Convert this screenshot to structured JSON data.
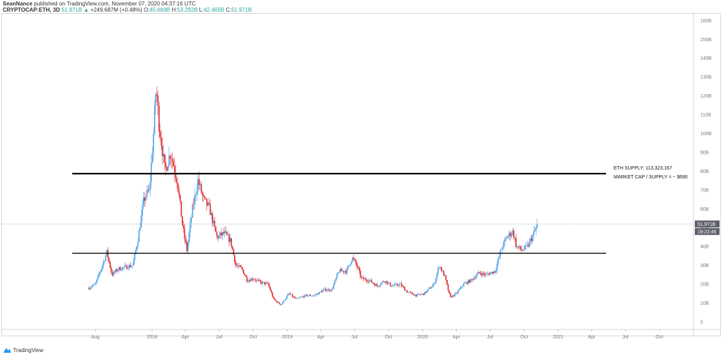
{
  "header": {
    "publisher": "SeanNance",
    "published_text": "published on TradingView.com, November 07, 2020 04:37:16 UTC",
    "symbol": "CRYPTOCAP:ETH, 3D",
    "last": "51.971B",
    "change": "+249.687M (+0.48%)",
    "open_label": "O:",
    "open": "45.689B",
    "high_label": "H:",
    "high": "53.292B",
    "low_label": "L:",
    "low": "42.465B",
    "close_label": "C:",
    "close": "51.971B"
  },
  "price_label": "51.971B",
  "countdown_label": "19:22:46",
  "brand": "TradingView",
  "colors": {
    "up": "#4a9fe8",
    "down": "#e02424",
    "axis_label_bg": "#5d606b"
  },
  "chart_data": {
    "type": "candlestick",
    "y_unit": "B",
    "ylim": [
      0,
      160
    ],
    "y_ticks": [
      "0",
      "10B",
      "20B",
      "30B",
      "40B",
      "50B",
      "60B",
      "70B",
      "80B",
      "90B",
      "100B",
      "110B",
      "120B",
      "130B",
      "140B",
      "150B",
      "160B"
    ],
    "x_ticks": [
      "Aug",
      "2018",
      "Apr",
      "Jul",
      "Oct",
      "2019",
      "Apr",
      "Jul",
      "Oct",
      "2020",
      "Apr",
      "Jul",
      "Oct",
      "2021",
      "Apr",
      "Jul",
      "Oct"
    ],
    "x_tick_dates": [
      "2017-08-01",
      "2018-01-01",
      "2018-04-01",
      "2018-07-01",
      "2018-10-01",
      "2019-01-01",
      "2019-04-01",
      "2019-07-01",
      "2019-10-01",
      "2020-01-01",
      "2020-04-01",
      "2020-07-01",
      "2020-10-01",
      "2021-01-01",
      "2021-04-01",
      "2021-07-01",
      "2021-10-01"
    ],
    "close_path": [
      [
        "2017-07-15",
        18
      ],
      [
        "2017-08-01",
        20
      ],
      [
        "2017-08-20",
        30
      ],
      [
        "2017-09-01",
        37
      ],
      [
        "2017-09-15",
        25
      ],
      [
        "2017-10-01",
        28
      ],
      [
        "2017-10-20",
        29
      ],
      [
        "2017-11-10",
        30
      ],
      [
        "2017-11-25",
        45
      ],
      [
        "2017-12-10",
        65
      ],
      [
        "2017-12-25",
        70
      ],
      [
        "2018-01-05",
        100
      ],
      [
        "2018-01-12",
        125
      ],
      [
        "2018-01-20",
        105
      ],
      [
        "2018-02-05",
        80
      ],
      [
        "2018-02-20",
        90
      ],
      [
        "2018-03-10",
        75
      ],
      [
        "2018-03-25",
        50
      ],
      [
        "2018-04-05",
        38
      ],
      [
        "2018-04-20",
        60
      ],
      [
        "2018-05-05",
        75
      ],
      [
        "2018-05-20",
        65
      ],
      [
        "2018-06-05",
        60
      ],
      [
        "2018-06-25",
        45
      ],
      [
        "2018-07-15",
        47
      ],
      [
        "2018-08-01",
        43
      ],
      [
        "2018-08-15",
        30
      ],
      [
        "2018-09-01",
        28
      ],
      [
        "2018-09-15",
        22
      ],
      [
        "2018-10-01",
        23
      ],
      [
        "2018-10-20",
        21
      ],
      [
        "2018-11-10",
        20
      ],
      [
        "2018-11-25",
        12
      ],
      [
        "2018-12-15",
        9
      ],
      [
        "2019-01-05",
        15
      ],
      [
        "2019-01-25",
        12
      ],
      [
        "2019-02-20",
        14
      ],
      [
        "2019-03-15",
        14
      ],
      [
        "2019-04-10",
        17
      ],
      [
        "2019-05-01",
        17
      ],
      [
        "2019-05-20",
        27
      ],
      [
        "2019-06-10",
        27
      ],
      [
        "2019-06-25",
        34
      ],
      [
        "2019-07-05",
        31
      ],
      [
        "2019-07-20",
        23
      ],
      [
        "2019-08-10",
        22
      ],
      [
        "2019-09-01",
        19
      ],
      [
        "2019-09-20",
        22
      ],
      [
        "2019-10-10",
        19
      ],
      [
        "2019-11-01",
        20
      ],
      [
        "2019-11-20",
        16
      ],
      [
        "2019-12-15",
        14
      ],
      [
        "2020-01-05",
        15
      ],
      [
        "2020-02-01",
        20
      ],
      [
        "2020-02-15",
        30
      ],
      [
        "2020-03-01",
        24
      ],
      [
        "2020-03-15",
        13
      ],
      [
        "2020-04-01",
        15
      ],
      [
        "2020-04-20",
        20
      ],
      [
        "2020-05-10",
        22
      ],
      [
        "2020-06-01",
        26
      ],
      [
        "2020-06-20",
        25
      ],
      [
        "2020-07-15",
        27
      ],
      [
        "2020-07-30",
        38
      ],
      [
        "2020-08-15",
        45
      ],
      [
        "2020-09-01",
        48
      ],
      [
        "2020-09-10",
        40
      ],
      [
        "2020-09-25",
        38
      ],
      [
        "2020-10-10",
        40
      ],
      [
        "2020-10-25",
        46
      ],
      [
        "2020-11-07",
        51.97
      ]
    ],
    "last_value": 51.971,
    "horizontal_lines": [
      {
        "value": 78.7,
        "style": "thick"
      },
      {
        "value": 36.4,
        "style": "thin"
      }
    ],
    "annotations": [
      "ETH SUPPLY: 113,323,167",
      "MARKET CAP / SUPPLY = ~ $690"
    ]
  }
}
